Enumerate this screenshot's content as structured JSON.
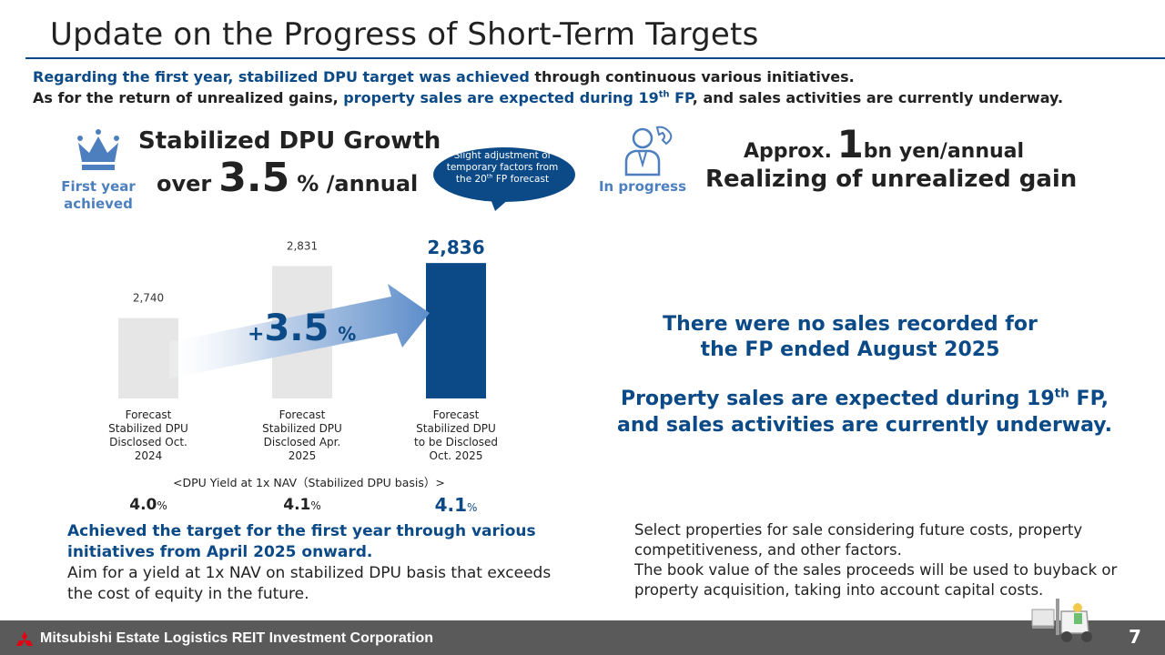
{
  "title": "Update on the Progress of Short-Term Targets",
  "intro": {
    "line1_highlight": "Regarding the first year, stabilized DPU target was achieved",
    "line1_rest": " through continuous various initiatives.",
    "line2_start": "As for the return of unrealized gains, ",
    "line2_highlight": "property sales are expected during 19",
    "line2_sup": "th",
    "line2_highlight_end": " FP",
    "line2_rest": ", and sales activities are currently underway."
  },
  "left": {
    "badge": "First year achieved",
    "heading": "Stabilized DPU Growth",
    "over": "over",
    "growth_value": "3.5",
    "growth_unit": "% /annual",
    "bubble": {
      "line": "Slight adjustment of temporary factors from the",
      "sup_prefix": "20",
      "sup": "th",
      "suffix": " FP forecast"
    }
  },
  "chart_data": {
    "type": "bar",
    "categories": [
      "Forecast Stabilized DPU Disclosed Oct. 2024",
      "Forecast Stabilized DPU Disclosed Apr. 2025",
      "Forecast Stabilized DPU to be Disclosed Oct. 2025"
    ],
    "category_lines": [
      [
        "Forecast",
        "Stabilized DPU",
        "Disclosed Oct.",
        "2024"
      ],
      [
        "Forecast",
        "Stabilized DPU",
        "Disclosed Apr.",
        "2025"
      ],
      [
        "Forecast",
        "Stabilized DPU",
        "to be Disclosed",
        "Oct. 2025"
      ]
    ],
    "values": [
      2740,
      2831,
      2836
    ],
    "value_labels": [
      "2,740",
      "2,831",
      "2,836"
    ],
    "ylim": [
      2600,
      2860
    ],
    "colors": [
      "#e6e6e6",
      "#e6e6e6",
      "#0b4a86"
    ],
    "arrow_label_prefix": "+",
    "arrow_label_value": "3.5",
    "arrow_label_unit": "%",
    "title": "",
    "xlabel": "",
    "ylabel": ""
  },
  "yield": {
    "caption": "<DPU Yield at 1x NAV（Stabilized DPU basis）>",
    "values": [
      "4.0",
      "4.1",
      "4.1"
    ],
    "unit": "%"
  },
  "achieved": {
    "bold": "Achieved the target for the first year through various initiatives from April 2025 onward.",
    "normal": "Aim for a yield at 1x NAV on stabilized DPU basis that exceeds the cost of equity in the future."
  },
  "right": {
    "badge": "In progress",
    "approx": "Approx.",
    "approx_value": "1",
    "approx_unit": "bn yen/annual",
    "realizing": "Realizing of unrealized gain",
    "no_sales_1": "There were no sales recorded for",
    "no_sales_2": "the FP ended August 2025",
    "expected_1a": "Property sales are expected during 19",
    "expected_1sup": "th",
    "expected_1b": " FP,",
    "expected_2": "and sales activities are currently underway.",
    "select_1": "Select properties for sale considering future costs, property competitiveness, and other factors.",
    "select_2": "The book value of the sales proceeds will be used to buyback or property acquisition, taking into account capital costs."
  },
  "footer": {
    "company": "Mitsubishi Estate Logistics REIT Investment Corporation",
    "page": "7"
  },
  "colors": {
    "navy": "#0b4a86",
    "light_blue": "#4d7fbf",
    "bar_gray": "#e6e6e6",
    "footer_gray": "#5a5a5a"
  }
}
